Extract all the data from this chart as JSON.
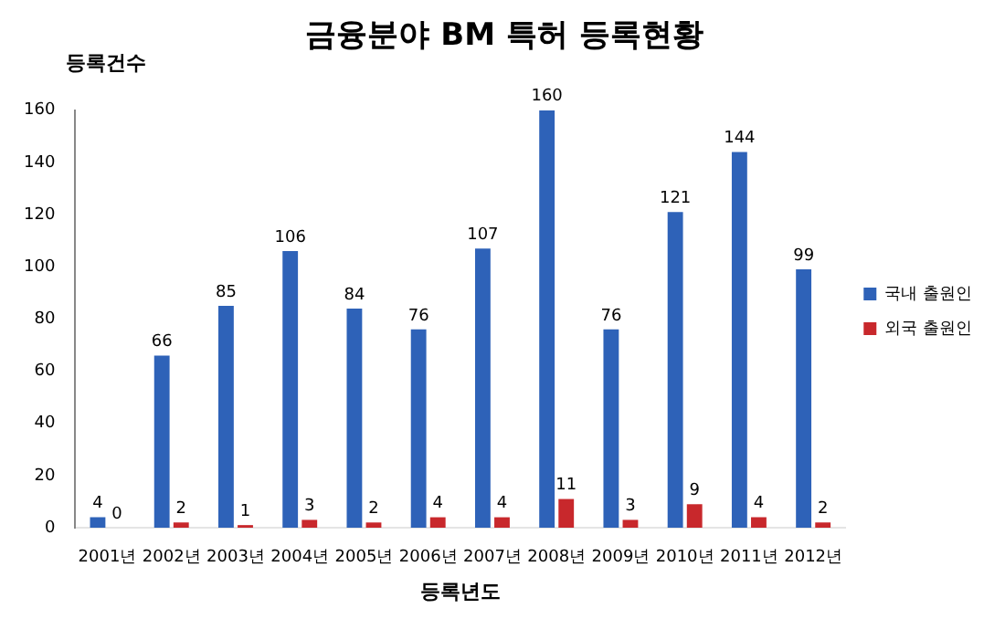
{
  "chart_data": {
    "type": "bar",
    "title": "금융분야 BM 특허 등록현황",
    "xlabel": "등록년도",
    "ylabel": "등록건수",
    "categories": [
      "2001년",
      "2002년",
      "2003년",
      "2004년",
      "2005년",
      "2006년",
      "2007년",
      "2008년",
      "2009년",
      "2010년",
      "2011년",
      "2012년"
    ],
    "series": [
      {
        "name": "국내 출원인",
        "color": "#2e62b8",
        "values": [
          4,
          66,
          85,
          106,
          84,
          76,
          107,
          160,
          76,
          121,
          144,
          99
        ]
      },
      {
        "name": "외국 출원인",
        "color": "#c8282c",
        "values": [
          0,
          2,
          1,
          3,
          2,
          4,
          4,
          11,
          3,
          9,
          4,
          2
        ]
      }
    ],
    "ylim": [
      0,
      160
    ],
    "yticks": [
      0,
      20,
      40,
      60,
      80,
      100,
      120,
      140,
      160
    ],
    "grid": false,
    "legend": "right",
    "data_labels": true
  }
}
